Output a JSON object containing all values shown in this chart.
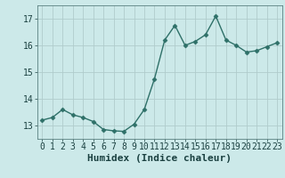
{
  "x": [
    0,
    1,
    2,
    3,
    4,
    5,
    6,
    7,
    8,
    9,
    10,
    11,
    12,
    13,
    14,
    15,
    16,
    17,
    18,
    19,
    20,
    21,
    22,
    23
  ],
  "y": [
    13.2,
    13.3,
    13.6,
    13.4,
    13.3,
    13.15,
    12.85,
    12.8,
    12.78,
    13.05,
    13.6,
    14.75,
    16.2,
    16.75,
    16.0,
    16.15,
    16.4,
    17.1,
    16.2,
    16.0,
    15.75,
    15.8,
    15.95,
    16.1
  ],
  "line_color": "#2e7068",
  "marker": "D",
  "markersize": 2.5,
  "linewidth": 1.0,
  "bg_color": "#cce9e9",
  "grid_color": "#b0cccc",
  "xlabel": "Humidex (Indice chaleur)",
  "ylim": [
    12.5,
    17.5
  ],
  "xlim": [
    -0.5,
    23.5
  ],
  "yticks": [
    13,
    14,
    15,
    16,
    17
  ],
  "xticks": [
    0,
    1,
    2,
    3,
    4,
    5,
    6,
    7,
    8,
    9,
    10,
    11,
    12,
    13,
    14,
    15,
    16,
    17,
    18,
    19,
    20,
    21,
    22,
    23
  ],
  "tick_fontsize": 7,
  "xlabel_fontsize": 8,
  "text_color": "#1a4040",
  "spine_color": "#5a8080"
}
